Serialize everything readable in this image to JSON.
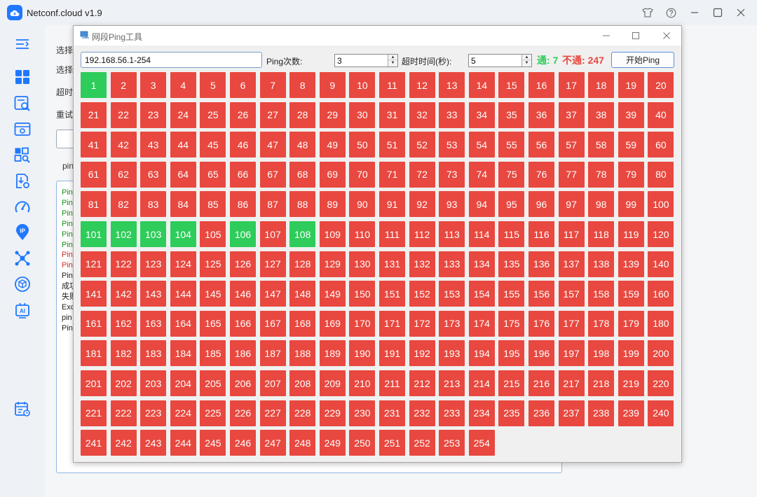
{
  "app": {
    "title": "Netconf.cloud v1.9"
  },
  "window_buttons": [
    "shirt-icon",
    "help-icon",
    "minimize-icon",
    "maximize-icon",
    "close-icon"
  ],
  "sidebar": {
    "items": [
      "collapse-menu-icon",
      "dashboard-icon",
      "device-search-icon",
      "config-icon",
      "inspect-icon",
      "backup-icon",
      "speed-icon",
      "ip-icon",
      "topology-icon",
      "package-icon",
      "ai-icon",
      "schedule-icon"
    ]
  },
  "background": {
    "labels": [
      "选择",
      "选择",
      "超时",
      "重试",
      "pin"
    ],
    "log": [
      {
        "text": "Pin",
        "color": "#1a8f1a"
      },
      {
        "text": "Pin",
        "color": "#1a8f1a"
      },
      {
        "text": "Pin",
        "color": "#1a8f1a"
      },
      {
        "text": "Pin",
        "color": "#1a8f1a"
      },
      {
        "text": "Pin",
        "color": "#1a8f1a"
      },
      {
        "text": "Pin",
        "color": "#1a8f1a"
      },
      {
        "text": "Pin",
        "color": "#d0302a"
      },
      {
        "text": "Pin",
        "color": "#d0302a"
      },
      {
        "text": "Pin",
        "color": "#222222"
      },
      {
        "text": "成功",
        "color": "#222222"
      },
      {
        "text": "失败",
        "color": "#222222"
      },
      {
        "text": "Exc",
        "color": "#222222"
      },
      {
        "text": "pin",
        "color": "#222222"
      },
      {
        "text": "Pin",
        "color": "#222222"
      }
    ]
  },
  "dialog": {
    "title": "网段Ping工具",
    "ip_range": "192.168.56.1-254",
    "ping_count_label": "Ping次数:",
    "ping_count": "3",
    "timeout_label": "超时时间(秒):",
    "timeout": "5",
    "reachable_label": "通:",
    "reachable_count": "7",
    "unreachable_label": "不通:",
    "unreachable_count": "247",
    "start_button": "开始Ping",
    "total_hosts": 254,
    "columns": 20,
    "reachable_hosts": [
      1,
      101,
      102,
      103,
      104,
      106,
      108
    ],
    "colors": {
      "up": "#2ecc5a",
      "down": "#e8483f",
      "up_text": "#2ecc5a",
      "down_text": "#e8483f"
    }
  }
}
